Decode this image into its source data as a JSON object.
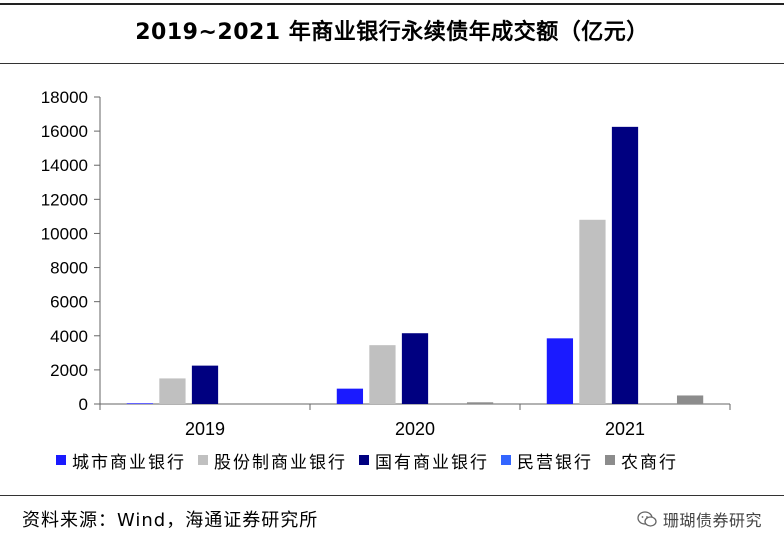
{
  "chart_data": {
    "type": "bar",
    "title": "2019~2021 年商业银行永续债年成交额（亿元）",
    "categories": [
      "2019",
      "2020",
      "2021"
    ],
    "series": [
      {
        "name": "城市商业银行",
        "color": "#1A1AFF",
        "values": [
          40,
          900,
          3850
        ]
      },
      {
        "name": "股份制商业银行",
        "color": "#C0C0C0",
        "values": [
          1500,
          3450,
          10800
        ]
      },
      {
        "name": "国有商业银行",
        "color": "#000080",
        "values": [
          2250,
          4150,
          16250
        ]
      },
      {
        "name": "民营银行",
        "color": "#3366FF",
        "values": [
          0,
          0,
          0
        ]
      },
      {
        "name": "农商行",
        "color": "#8C8C8C",
        "values": [
          0,
          100,
          500
        ]
      }
    ],
    "ylim": [
      0,
      18000
    ],
    "yticks": [
      0,
      2000,
      4000,
      6000,
      8000,
      10000,
      12000,
      14000,
      16000,
      18000
    ],
    "xlabel": "",
    "ylabel": "",
    "legend_position": "bottom"
  },
  "footer": {
    "source": "资料来源：Wind，海通证券研究所",
    "watermark": "珊瑚债券研究"
  },
  "icons": {
    "watermark": "wechat-icon"
  }
}
